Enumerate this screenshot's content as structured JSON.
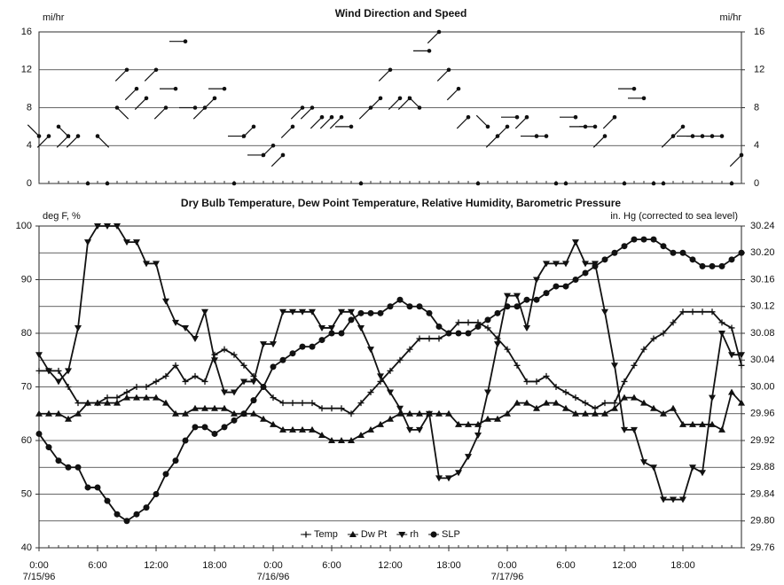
{
  "chart_data": [
    {
      "type": "wind",
      "title": "Wind Direction and Speed",
      "ylabel": "mi/hr",
      "y2label": "mi/hr",
      "xlim": [
        0,
        72
      ],
      "ylim": [
        0,
        16
      ],
      "yticks": [
        0,
        4,
        8,
        12,
        16
      ],
      "y2ticks": [
        0,
        4,
        8,
        12,
        16
      ],
      "grid": true,
      "color": "#111111",
      "x": [
        0,
        1,
        2,
        3,
        4,
        5,
        6,
        7,
        8,
        9,
        10,
        11,
        12,
        13,
        14,
        15,
        16,
        17,
        18,
        19,
        20,
        21,
        22,
        23,
        24,
        25,
        26,
        27,
        28,
        29,
        30,
        31,
        32,
        33,
        34,
        35,
        36,
        37,
        38,
        39,
        40,
        41,
        42,
        43,
        44,
        45,
        46,
        47,
        48,
        49,
        50,
        51,
        52,
        53,
        54,
        55,
        56,
        57,
        58,
        59,
        60,
        61,
        62,
        63,
        64,
        65,
        66,
        67,
        68,
        69,
        70,
        71,
        72
      ],
      "speed": [
        5,
        5,
        6,
        5,
        5,
        0,
        5,
        0,
        8,
        12,
        10,
        9,
        12,
        8,
        10,
        15,
        8,
        8,
        9,
        10,
        0,
        5,
        6,
        3,
        4,
        3,
        6,
        8,
        8,
        7,
        7,
        7,
        6,
        0,
        8,
        9,
        12,
        9,
        9,
        8,
        14,
        16,
        12,
        10,
        7,
        0,
        6,
        5,
        6,
        7,
        7,
        5,
        5,
        0,
        0,
        7,
        6,
        6,
        5,
        7,
        0,
        10,
        9,
        0,
        0,
        5,
        6,
        5,
        5,
        5,
        5,
        0,
        3
      ],
      "direction": [
        315,
        225,
        135,
        225,
        225,
        null,
        135,
        null,
        135,
        225,
        225,
        225,
        225,
        225,
        270,
        270,
        270,
        225,
        225,
        270,
        null,
        270,
        225,
        270,
        225,
        225,
        225,
        225,
        225,
        225,
        225,
        225,
        270,
        null,
        225,
        225,
        225,
        225,
        225,
        315,
        270,
        225,
        225,
        225,
        225,
        null,
        315,
        225,
        225,
        270,
        225,
        270,
        270,
        null,
        null,
        270,
        270,
        270,
        225,
        225,
        null,
        270,
        270,
        null,
        null,
        225,
        225,
        270,
        270,
        270,
        270,
        null,
        225
      ]
    },
    {
      "type": "line",
      "title": "Dry Bulb Temperature, Dew Point Temperature, Relative Humidity, Barometric Pressure",
      "ylabel": "deg F, %",
      "y2label": "in. Hg (corrected to sea level)",
      "xlim": [
        0,
        72
      ],
      "xticks": [
        {
          "value": 0,
          "label": "0:00 7/15/96"
        },
        {
          "value": 6,
          "label": "6:00"
        },
        {
          "value": 12,
          "label": "12:00"
        },
        {
          "value": 18,
          "label": "18:00"
        },
        {
          "value": 24,
          "label": "0:00 7/16/96"
        },
        {
          "value": 30,
          "label": "6:00"
        },
        {
          "value": 36,
          "label": "12:00"
        },
        {
          "value": 42,
          "label": "18:00"
        },
        {
          "value": 48,
          "label": "0:00 7/17/96"
        },
        {
          "value": 54,
          "label": "6:00"
        },
        {
          "value": 60,
          "label": "12:00"
        },
        {
          "value": 66,
          "label": "18:00"
        }
      ],
      "ylim": [
        40,
        100
      ],
      "yticks": [
        40,
        50,
        60,
        70,
        80,
        90,
        100
      ],
      "ygrid": [
        40,
        45,
        50,
        55,
        60,
        65,
        70,
        75,
        80,
        85,
        90,
        95,
        100
      ],
      "y2lim": [
        29.76,
        30.24
      ],
      "y2ticks": [
        {
          "value": 29.76,
          "label": "29.76"
        },
        {
          "value": 29.8,
          "label": "29.80"
        },
        {
          "value": 29.84,
          "label": "29.84"
        },
        {
          "value": 29.88,
          "label": "29.88"
        },
        {
          "value": 29.92,
          "label": "29.92"
        },
        {
          "value": 29.96,
          "label": "29.96"
        },
        {
          "value": 30,
          "label": "30.00"
        },
        {
          "value": 30.04,
          "label": "30.04"
        },
        {
          "value": 30.08,
          "label": "30.08"
        },
        {
          "value": 30.12,
          "label": "30.12"
        },
        {
          "value": 30.16,
          "label": "30.16"
        },
        {
          "value": 30.2,
          "label": "30.20"
        },
        {
          "value": 30.24,
          "label": "30.24"
        }
      ],
      "grid": true,
      "legend": "bottom",
      "x": [
        0,
        1,
        2,
        3,
        4,
        5,
        6,
        7,
        8,
        9,
        10,
        11,
        12,
        13,
        14,
        15,
        16,
        17,
        18,
        19,
        20,
        21,
        22,
        23,
        24,
        25,
        26,
        27,
        28,
        29,
        30,
        31,
        32,
        33,
        34,
        35,
        36,
        37,
        38,
        39,
        40,
        41,
        42,
        43,
        44,
        45,
        46,
        47,
        48,
        49,
        50,
        51,
        52,
        53,
        54,
        55,
        56,
        57,
        58,
        59,
        60,
        61,
        62,
        63,
        64,
        65,
        66,
        67,
        68,
        69,
        70,
        71,
        72
      ],
      "series": [
        {
          "name": "Temp",
          "color": "#111111",
          "marker": "plus",
          "values": [
            73,
            73,
            73,
            70,
            67,
            67,
            67,
            68,
            68,
            69,
            70,
            70,
            71,
            72,
            74,
            71,
            72,
            71,
            76,
            77,
            76,
            74,
            72,
            70,
            68,
            67,
            67,
            67,
            67,
            66,
            66,
            66,
            65,
            67,
            69,
            71,
            73,
            75,
            77,
            79,
            79,
            79,
            80,
            82,
            82,
            82,
            81,
            79,
            77,
            74,
            71,
            71,
            72,
            70,
            69,
            68,
            67,
            66,
            67,
            67,
            71,
            74,
            77,
            79,
            80,
            82,
            84,
            84,
            84,
            84,
            82,
            81,
            74
          ]
        },
        {
          "name": "Dw Pt",
          "color": "#111111",
          "marker": "triangle-up",
          "values": [
            65,
            65,
            65,
            64,
            65,
            67,
            67,
            67,
            67,
            68,
            68,
            68,
            68,
            67,
            65,
            65,
            66,
            66,
            66,
            66,
            65,
            65,
            65,
            64,
            63,
            62,
            62,
            62,
            62,
            61,
            60,
            60,
            60,
            61,
            62,
            63,
            64,
            65,
            65,
            65,
            65,
            65,
            65,
            63,
            63,
            63,
            64,
            64,
            65,
            67,
            67,
            66,
            67,
            67,
            66,
            65,
            65,
            65,
            65,
            66,
            68,
            68,
            67,
            66,
            65,
            66,
            63,
            63,
            63,
            63,
            62,
            69,
            67
          ]
        },
        {
          "name": "rh",
          "color": "#111111",
          "marker": "triangle-down",
          "values": [
            76,
            73,
            71,
            73,
            81,
            97,
            100,
            100,
            100,
            97,
            97,
            93,
            93,
            86,
            82,
            81,
            79,
            84,
            75,
            69,
            69,
            71,
            71,
            78,
            78,
            84,
            84,
            84,
            84,
            81,
            81,
            84,
            84,
            81,
            77,
            72,
            69,
            66,
            62,
            62,
            65,
            53,
            53,
            54,
            57,
            61,
            69,
            78,
            87,
            87,
            81,
            90,
            93,
            93,
            93,
            97,
            93,
            93,
            84,
            74,
            62,
            62,
            56,
            55,
            49,
            49,
            49,
            55,
            54,
            68,
            80,
            76,
            76
          ]
        },
        {
          "name": "SLP",
          "color": "#111111",
          "marker": "circle",
          "axis": "y2",
          "values": [
            29.93,
            29.91,
            29.89,
            29.88,
            29.88,
            29.85,
            29.85,
            29.83,
            29.81,
            29.8,
            29.81,
            29.82,
            29.84,
            29.87,
            29.89,
            29.92,
            29.94,
            29.94,
            29.93,
            29.94,
            29.95,
            29.96,
            29.98,
            30,
            30.03,
            30.04,
            30.05,
            30.06,
            30.06,
            30.07,
            30.08,
            30.08,
            30.1,
            30.11,
            30.11,
            30.11,
            30.12,
            30.13,
            30.12,
            30.12,
            30.11,
            30.09,
            30.08,
            30.08,
            30.08,
            30.09,
            30.1,
            30.11,
            30.12,
            30.12,
            30.13,
            30.13,
            30.14,
            30.15,
            30.15,
            30.16,
            30.17,
            30.18,
            30.19,
            30.2,
            30.21,
            30.22,
            30.22,
            30.22,
            30.21,
            30.2,
            30.2,
            30.19,
            30.18,
            30.18,
            30.18,
            30.19,
            30.2
          ]
        }
      ]
    }
  ]
}
